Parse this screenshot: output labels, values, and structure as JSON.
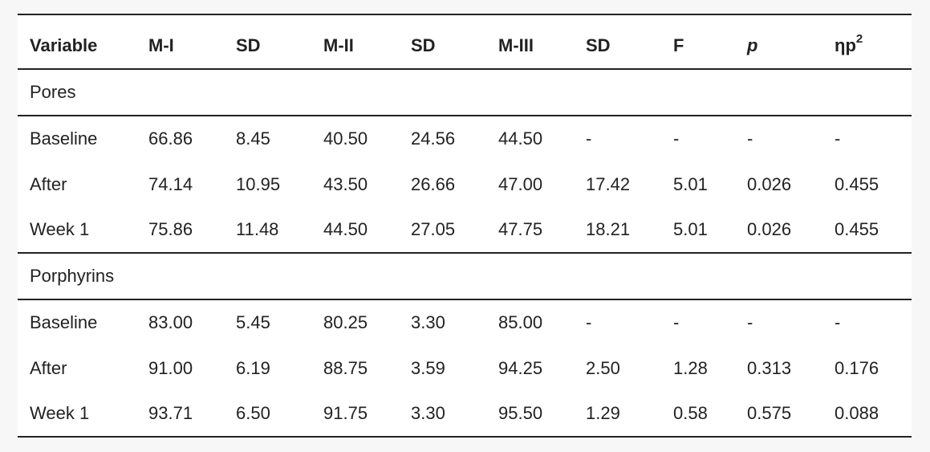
{
  "table": {
    "headers": {
      "variable": "Variable",
      "m1": "M-I",
      "sd1": "SD",
      "m2": "M-II",
      "sd2": "SD",
      "m3": "M-III",
      "sd3": "SD",
      "f": "F",
      "p": "p",
      "eta_base": "ηp",
      "eta_sup": "2"
    },
    "groups": [
      {
        "label": "Pores",
        "rows": [
          {
            "variable": "Baseline",
            "values": [
              "66.86",
              "8.45",
              "40.50",
              "24.56",
              "44.50",
              "-",
              "-",
              "-",
              "-"
            ]
          },
          {
            "variable": "After",
            "values": [
              "74.14",
              "10.95",
              "43.50",
              "26.66",
              "47.00",
              "17.42",
              "5.01",
              "0.026",
              "0.455"
            ]
          },
          {
            "variable": "Week 1",
            "values": [
              "75.86",
              "11.48",
              "44.50",
              "27.05",
              "47.75",
              "18.21",
              "5.01",
              "0.026",
              "0.455"
            ]
          }
        ]
      },
      {
        "label": "Porphyrins",
        "rows": [
          {
            "variable": "Baseline",
            "values": [
              "83.00",
              "5.45",
              "80.25",
              "3.30",
              "85.00",
              "-",
              "-",
              "-",
              "-"
            ]
          },
          {
            "variable": "After",
            "values": [
              "91.00",
              "6.19",
              "88.75",
              "3.59",
              "94.25",
              "2.50",
              "1.28",
              "0.313",
              "0.176"
            ]
          },
          {
            "variable": "Week 1",
            "values": [
              "93.71",
              "6.50",
              "91.75",
              "3.30",
              "95.50",
              "1.29",
              "0.58",
              "0.575",
              "0.088"
            ]
          }
        ]
      }
    ]
  }
}
